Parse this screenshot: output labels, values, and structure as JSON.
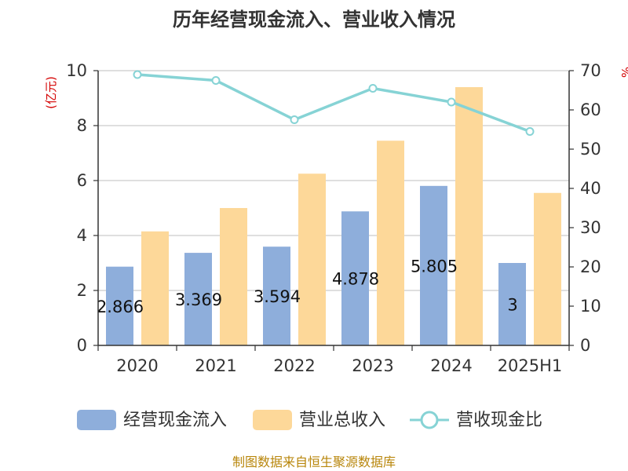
{
  "chart_data": {
    "type": "bar",
    "title": "历年经营现金流入、营业收入情况",
    "categories": [
      "2020",
      "2021",
      "2022",
      "2023",
      "2024",
      "2025H1"
    ],
    "y_left": {
      "unit_label": "(亿元)",
      "lim": [
        0,
        10
      ],
      "ticks": [
        "0",
        "2",
        "4",
        "6",
        "8",
        "10"
      ]
    },
    "y_right": {
      "unit_label": "%",
      "lim": [
        0,
        70
      ],
      "ticks": [
        "0",
        "10",
        "20",
        "30",
        "40",
        "50",
        "60",
        "70"
      ]
    },
    "series": [
      {
        "name": "经营现金流入",
        "kind": "bar",
        "axis": "left",
        "color": "#8eaedb",
        "values": [
          2.866,
          3.369,
          3.594,
          4.878,
          5.805,
          3
        ],
        "labels": [
          "2.866",
          "3.369",
          "3.594",
          "4.878",
          "5.805",
          "3"
        ]
      },
      {
        "name": "营业总收入",
        "kind": "bar",
        "axis": "left",
        "color": "#fdd899",
        "values": [
          4.15,
          5.0,
          6.25,
          7.45,
          9.4,
          5.55
        ]
      },
      {
        "name": "营收现金比",
        "kind": "line",
        "axis": "right",
        "color": "#86d3d5",
        "values": [
          69,
          67.5,
          57.5,
          65.5,
          62,
          54.5
        ]
      }
    ],
    "grid": true,
    "legend_position": "bottom"
  },
  "source": "制图数据来自恒生聚源数据库"
}
